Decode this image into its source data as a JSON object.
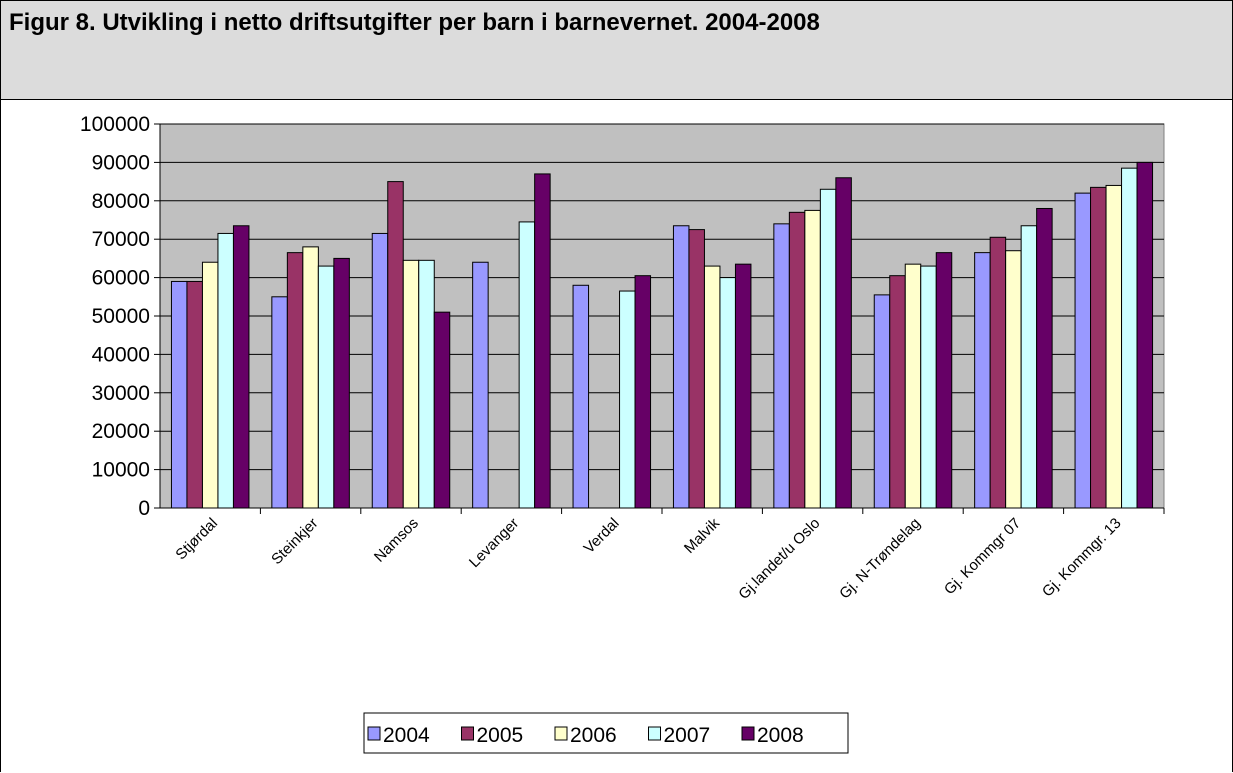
{
  "figure": {
    "title": "Figur 8. Utvikling i netto driftsutgifter per barn i barnevernet. 2004-2008"
  },
  "chart_data": {
    "type": "bar",
    "title": "",
    "xlabel": "",
    "ylabel": "",
    "ylim": [
      0,
      100000
    ],
    "yticks": [
      0,
      10000,
      20000,
      30000,
      40000,
      50000,
      60000,
      70000,
      80000,
      90000,
      100000
    ],
    "grid": true,
    "legend_position": "bottom",
    "plot_background": "#c0c0c0",
    "categories": [
      "Stjørdal",
      "Steinkjer",
      "Namsos",
      "Levanger",
      "Verdal",
      "Malvik",
      "Gj.landet/u Oslo",
      "Gj. N-Trøndelag",
      "Gj. Kommgr 07",
      "Gj. Kommgr. 13"
    ],
    "series": [
      {
        "name": "2004",
        "color": "#9999ff",
        "values": [
          59000,
          55000,
          71500,
          64000,
          58000,
          73500,
          74000,
          55500,
          66500,
          82000
        ]
      },
      {
        "name": "2005",
        "color": "#993366",
        "values": [
          59000,
          66500,
          85000,
          null,
          null,
          72500,
          77000,
          60500,
          70500,
          83500
        ]
      },
      {
        "name": "2006",
        "color": "#ffffcc",
        "values": [
          64000,
          68000,
          64500,
          null,
          null,
          63000,
          77500,
          63500,
          67000,
          84000
        ]
      },
      {
        "name": "2007",
        "color": "#ccffff",
        "values": [
          71500,
          63000,
          64500,
          74500,
          56500,
          60000,
          83000,
          63000,
          73500,
          88500
        ]
      },
      {
        "name": "2008",
        "color": "#660066",
        "values": [
          73500,
          65000,
          51000,
          87000,
          60500,
          63500,
          86000,
          66500,
          78000,
          90000
        ]
      }
    ]
  }
}
